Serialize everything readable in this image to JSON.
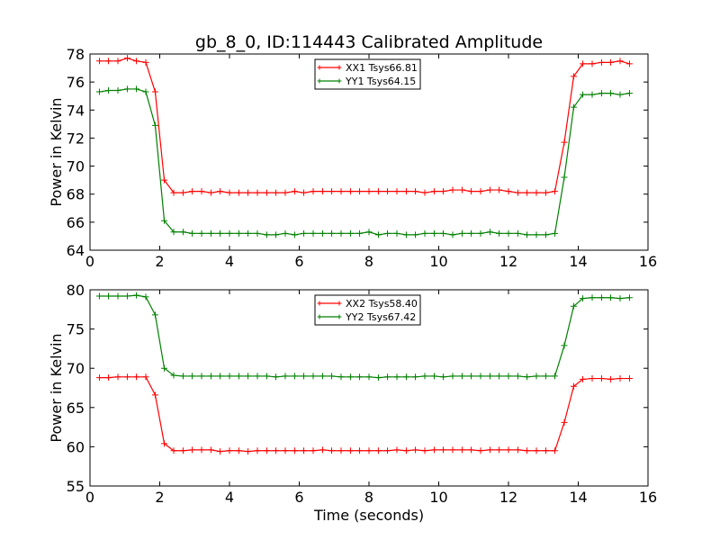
{
  "chart_data": [
    {
      "type": "line",
      "title": "gb_8_0, ID:114443 Calibrated Amplitude",
      "xlabel": "",
      "ylabel": "Power in Kelvin",
      "xlim": [
        0,
        16
      ],
      "ylim": [
        64,
        78
      ],
      "xticks": [
        "0",
        "2",
        "4",
        "6",
        "8",
        "10",
        "12",
        "14",
        "16"
      ],
      "yticks": [
        "64",
        "66",
        "68",
        "70",
        "72",
        "74",
        "76",
        "78"
      ],
      "legend_position": "top-center",
      "x": [
        0.27,
        0.53,
        0.8,
        1.07,
        1.33,
        1.6,
        1.87,
        2.13,
        2.4,
        2.67,
        2.93,
        3.2,
        3.47,
        3.73,
        4.0,
        4.27,
        4.53,
        4.8,
        5.07,
        5.33,
        5.6,
        5.87,
        6.13,
        6.4,
        6.67,
        6.93,
        7.2,
        7.47,
        7.73,
        8.0,
        8.27,
        8.53,
        8.8,
        9.07,
        9.33,
        9.6,
        9.87,
        10.13,
        10.4,
        10.67,
        10.93,
        11.2,
        11.47,
        11.73,
        12.0,
        12.27,
        12.53,
        12.8,
        13.07,
        13.33,
        13.6,
        13.87,
        14.13,
        14.4,
        14.67,
        14.93,
        15.2,
        15.47
      ],
      "series": [
        {
          "name": "XX1 Tsys66.81",
          "color": "#ff0000",
          "values": [
            77.5,
            77.5,
            77.5,
            77.7,
            77.5,
            77.4,
            75.3,
            69.0,
            68.1,
            68.1,
            68.2,
            68.2,
            68.1,
            68.2,
            68.1,
            68.1,
            68.1,
            68.1,
            68.1,
            68.1,
            68.1,
            68.2,
            68.1,
            68.2,
            68.2,
            68.2,
            68.2,
            68.2,
            68.2,
            68.2,
            68.2,
            68.2,
            68.2,
            68.2,
            68.2,
            68.1,
            68.2,
            68.2,
            68.3,
            68.3,
            68.2,
            68.2,
            68.3,
            68.3,
            68.2,
            68.1,
            68.1,
            68.1,
            68.1,
            68.2,
            71.7,
            76.4,
            77.3,
            77.3,
            77.4,
            77.4,
            77.5,
            77.3
          ]
        },
        {
          "name": "YY1 Tsys64.15",
          "color": "#008000",
          "values": [
            75.3,
            75.4,
            75.4,
            75.5,
            75.5,
            75.3,
            72.9,
            66.1,
            65.3,
            65.3,
            65.2,
            65.2,
            65.2,
            65.2,
            65.2,
            65.2,
            65.2,
            65.2,
            65.1,
            65.1,
            65.2,
            65.1,
            65.2,
            65.2,
            65.2,
            65.2,
            65.2,
            65.2,
            65.2,
            65.3,
            65.1,
            65.2,
            65.2,
            65.1,
            65.1,
            65.2,
            65.2,
            65.2,
            65.1,
            65.2,
            65.2,
            65.2,
            65.3,
            65.2,
            65.2,
            65.2,
            65.1,
            65.1,
            65.1,
            65.2,
            69.2,
            74.2,
            75.1,
            75.1,
            75.2,
            75.2,
            75.1,
            75.2
          ]
        }
      ]
    },
    {
      "type": "line",
      "title": "",
      "xlabel": "Time (seconds)",
      "ylabel": "Power in Kelvin",
      "xlim": [
        0,
        16
      ],
      "ylim": [
        55,
        80
      ],
      "xticks": [
        "0",
        "2",
        "4",
        "6",
        "8",
        "10",
        "12",
        "14",
        "16"
      ],
      "yticks": [
        "55",
        "60",
        "65",
        "70",
        "75",
        "80"
      ],
      "legend_position": "top-center",
      "x": [
        0.27,
        0.53,
        0.8,
        1.07,
        1.33,
        1.6,
        1.87,
        2.13,
        2.4,
        2.67,
        2.93,
        3.2,
        3.47,
        3.73,
        4.0,
        4.27,
        4.53,
        4.8,
        5.07,
        5.33,
        5.6,
        5.87,
        6.13,
        6.4,
        6.67,
        6.93,
        7.2,
        7.47,
        7.73,
        8.0,
        8.27,
        8.53,
        8.8,
        9.07,
        9.33,
        9.6,
        9.87,
        10.13,
        10.4,
        10.67,
        10.93,
        11.2,
        11.47,
        11.73,
        12.0,
        12.27,
        12.53,
        12.8,
        13.07,
        13.33,
        13.6,
        13.87,
        14.13,
        14.4,
        14.67,
        14.93,
        15.2,
        15.47
      ],
      "series": [
        {
          "name": "XX2 Tsys58.40",
          "color": "#ff0000",
          "values": [
            68.8,
            68.8,
            68.9,
            68.9,
            68.9,
            68.9,
            66.6,
            60.4,
            59.5,
            59.5,
            59.6,
            59.6,
            59.6,
            59.4,
            59.5,
            59.5,
            59.4,
            59.5,
            59.5,
            59.5,
            59.5,
            59.5,
            59.5,
            59.5,
            59.6,
            59.5,
            59.5,
            59.5,
            59.5,
            59.5,
            59.5,
            59.5,
            59.6,
            59.5,
            59.6,
            59.5,
            59.6,
            59.6,
            59.6,
            59.6,
            59.6,
            59.5,
            59.6,
            59.6,
            59.6,
            59.6,
            59.5,
            59.5,
            59.5,
            59.5,
            63.1,
            67.7,
            68.6,
            68.7,
            68.7,
            68.6,
            68.7,
            68.7
          ]
        },
        {
          "name": "YY2 Tsys67.42",
          "color": "#008000",
          "values": [
            79.2,
            79.2,
            79.2,
            79.2,
            79.3,
            79.1,
            76.8,
            70.0,
            69.1,
            69.0,
            69.0,
            69.0,
            69.0,
            69.0,
            69.0,
            69.0,
            69.0,
            69.0,
            69.0,
            68.9,
            69.0,
            69.0,
            69.0,
            69.0,
            69.0,
            69.0,
            68.9,
            68.9,
            68.9,
            68.9,
            68.8,
            68.9,
            68.9,
            68.9,
            68.9,
            69.0,
            69.0,
            68.9,
            69.0,
            69.0,
            69.0,
            69.0,
            69.0,
            69.0,
            69.0,
            69.0,
            68.9,
            69.0,
            69.0,
            69.0,
            72.9,
            77.9,
            78.9,
            79.0,
            79.0,
            79.0,
            78.9,
            79.0
          ]
        }
      ]
    }
  ]
}
